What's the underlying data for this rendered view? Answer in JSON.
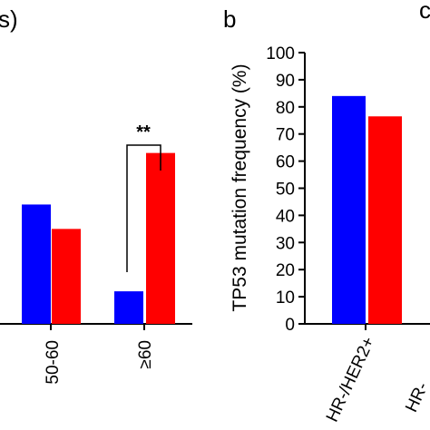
{
  "chart_data": [
    {
      "type": "bar",
      "panel_label": "s)",
      "categories": [
        "50-60",
        "≥60"
      ],
      "series": [
        {
          "color": "#0000ff",
          "values": [
            44,
            12
          ]
        },
        {
          "color": "#ff0000",
          "values": [
            35,
            63
          ]
        }
      ],
      "annotations": [
        {
          "text": "**",
          "category": "≥60"
        }
      ],
      "grid": false
    },
    {
      "type": "bar",
      "panel_label": "b",
      "title": "",
      "ylabel": "TP53 mutation frequency (%)",
      "ylim": [
        0,
        100
      ],
      "yticks": [
        "0",
        "10",
        "20",
        "30",
        "40",
        "50",
        "60",
        "70",
        "80",
        "90",
        "100"
      ],
      "categories": [
        "HR-/HER2+"
      ],
      "series": [
        {
          "color": "#0000ff",
          "values": [
            84
          ]
        },
        {
          "color": "#ff0000",
          "values": [
            76.5
          ]
        }
      ],
      "grid": false
    },
    {
      "type": "bar",
      "panel_label": "c",
      "categories": [
        "HR-"
      ]
    }
  ]
}
